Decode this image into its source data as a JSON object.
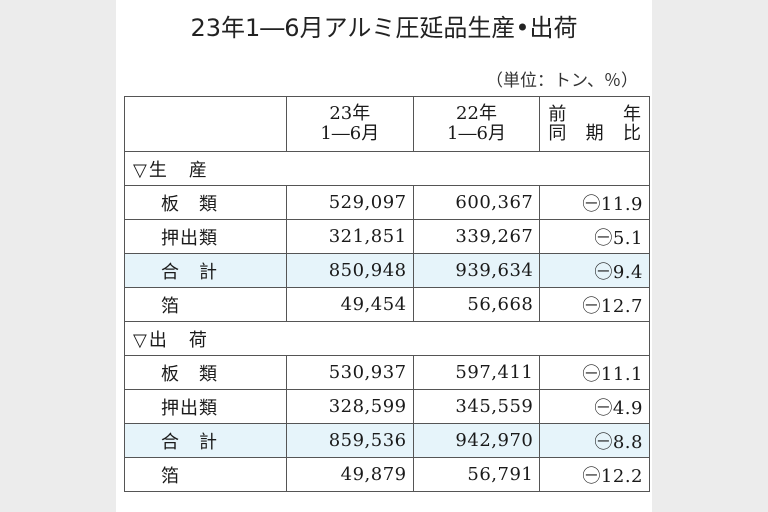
{
  "title": "23年1―6月アルミ圧延品生産•出荷",
  "unit_note": "（単位：トン、％）",
  "headers": {
    "col1_line1": "23年",
    "col1_line2": "1―6月",
    "col2_line1": "22年",
    "col2_line2": "1―6月",
    "yoy_line1_a": "前",
    "yoy_line1_b": "年",
    "yoy_line2_a": "同",
    "yoy_line2_b": "期",
    "yoy_line2_c": "比"
  },
  "sections": [
    {
      "label": "▽生　産",
      "rows": [
        {
          "label": "板　類",
          "y23": "529,097",
          "y22": "600,367",
          "yoy": "㊀11.9",
          "highlight": false
        },
        {
          "label": "押出類",
          "y23": "321,851",
          "y22": "339,267",
          "yoy": "㊀5.1",
          "highlight": false
        },
        {
          "label": "合　計",
          "y23": "850,948",
          "y22": "939,634",
          "yoy": "㊀9.4",
          "highlight": true
        },
        {
          "label": "箔",
          "y23": "49,454",
          "y22": "56,668",
          "yoy": "㊀12.7",
          "highlight": false
        }
      ]
    },
    {
      "label": "▽出　荷",
      "rows": [
        {
          "label": "板　類",
          "y23": "530,937",
          "y22": "597,411",
          "yoy": "㊀11.1",
          "highlight": false
        },
        {
          "label": "押出類",
          "y23": "328,599",
          "y22": "345,559",
          "yoy": "㊀4.9",
          "highlight": false
        },
        {
          "label": "合　計",
          "y23": "859,536",
          "y22": "942,970",
          "yoy": "㊀8.8",
          "highlight": true
        },
        {
          "label": "箔",
          "y23": "49,879",
          "y22": "56,791",
          "yoy": "㊀12.2",
          "highlight": false
        }
      ]
    }
  ],
  "colors": {
    "total_row_bg": "#e6f4fa",
    "border": "#555555",
    "page_bg": "#ffffff"
  }
}
